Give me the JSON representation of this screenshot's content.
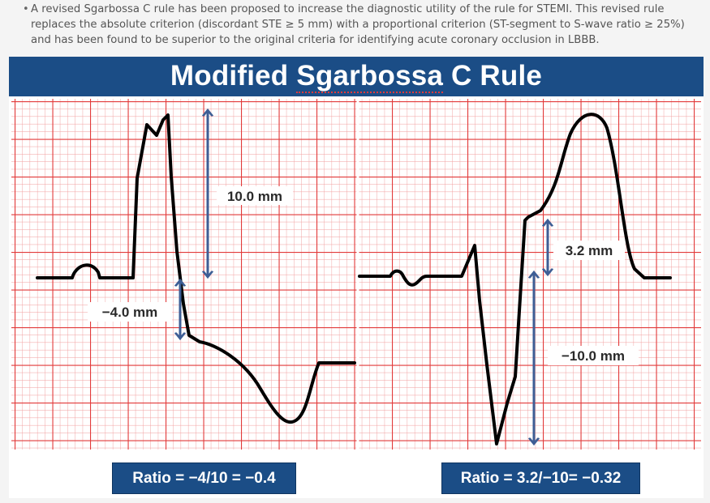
{
  "paragraph": {
    "text_prefix": "A revised Sgarbossa C rule has been proposed to increase the diagnostic utility of the rule for STEMI. This revised rule replaces the absolute criterion (discordant STE ≥ 5 mm) with a proportional criterion (ST-segment to S-wave ratio ≥ 25%) and has been found to be superior to the original criteria for identifying acute coronary occlusion in LBBB."
  },
  "figure": {
    "title_prefix": "Modified ",
    "title_word": "Sgarbossa",
    "title_suffix": " C Rule",
    "left_panel": {
      "label_upper": "10.0 mm",
      "label_lower": "−4.0 mm",
      "ratio": "Ratio = −4/10 = −0.4"
    },
    "right_panel": {
      "label_upper": "3.2 mm",
      "label_lower": "−10.0 mm",
      "ratio": "Ratio = 3.2/−10= −0.32"
    },
    "colors": {
      "header": "#1b4d86",
      "grid": "#e23a3a",
      "arrow": "#3e5e95",
      "trace": "#000000"
    }
  }
}
